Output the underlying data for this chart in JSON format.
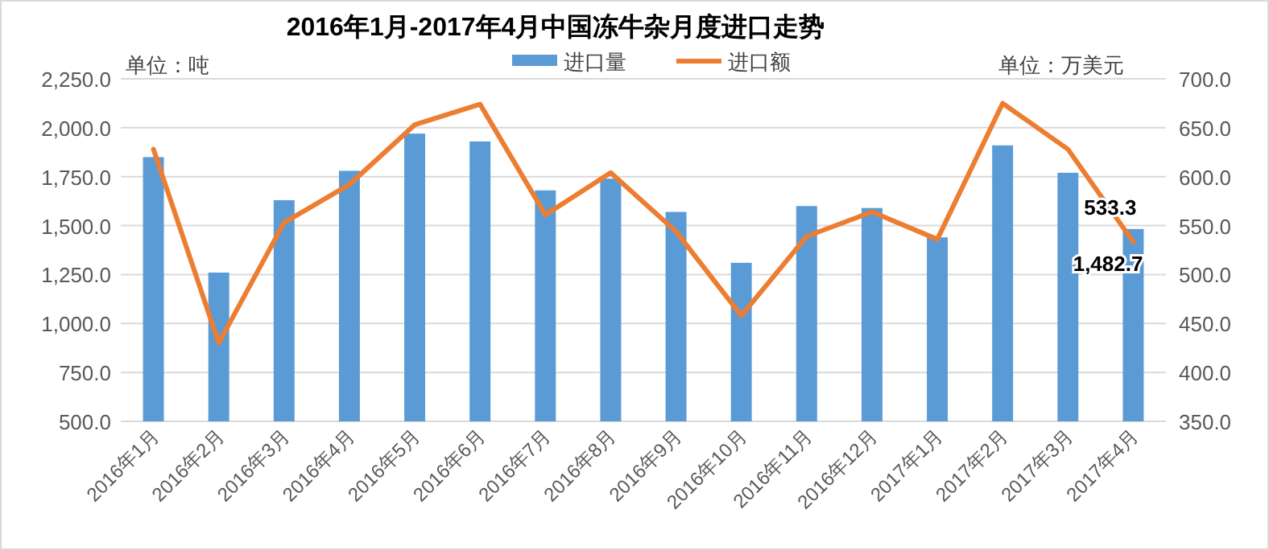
{
  "chart_data": {
    "type": "bar",
    "title": "2016年1月-2017年4月中国冻牛杂月度进口走势",
    "ylabel": "单位：吨",
    "y2label": "单位：万美元",
    "categories": [
      "2016年1月",
      "2016年2月",
      "2016年3月",
      "2016年4月",
      "2016年5月",
      "2016年6月",
      "2016年7月",
      "2016年8月",
      "2016年9月",
      "2016年10月",
      "2016年11月",
      "2016年12月",
      "2017年1月",
      "2017年2月",
      "2017年3月",
      "2017年4月"
    ],
    "series": [
      {
        "name": "进口量",
        "type": "bar",
        "color": "#5b9bd5",
        "values": [
          1850,
          1260,
          1630,
          1780,
          1970,
          1930,
          1680,
          1740,
          1570,
          1310,
          1600,
          1590,
          1440,
          1910,
          1770,
          1482.7
        ],
        "value_labels": [
          null,
          null,
          null,
          null,
          null,
          null,
          null,
          null,
          null,
          null,
          null,
          null,
          null,
          null,
          null,
          "1,482.7"
        ]
      },
      {
        "name": "进口额",
        "type": "line",
        "axis": "y2",
        "color": "#ed7d31",
        "values": [
          628,
          430,
          553,
          592,
          653,
          674,
          561,
          604,
          544,
          458,
          539,
          564,
          536,
          675,
          628,
          533.3
        ],
        "value_labels": [
          null,
          null,
          null,
          null,
          null,
          null,
          null,
          null,
          null,
          null,
          null,
          null,
          null,
          null,
          null,
          "533.3"
        ]
      }
    ],
    "ylim": [
      500,
      2250
    ],
    "yticks": [
      {
        "value": 500,
        "label": "500.0"
      },
      {
        "value": 750,
        "label": "750.0"
      },
      {
        "value": 1000,
        "label": "1,000.0"
      },
      {
        "value": 1250,
        "label": "1,250.0"
      },
      {
        "value": 1500,
        "label": "1,500.0"
      },
      {
        "value": 1750,
        "label": "1,750.0"
      },
      {
        "value": 2000,
        "label": "2,000.0"
      },
      {
        "value": 2250,
        "label": "2,250.0"
      }
    ],
    "y2lim": [
      350,
      700
    ],
    "y2ticks": [
      {
        "value": 350,
        "label": "350.0"
      },
      {
        "value": 400,
        "label": "400.0"
      },
      {
        "value": 450,
        "label": "450.0"
      },
      {
        "value": 500,
        "label": "500.0"
      },
      {
        "value": 550,
        "label": "550.0"
      },
      {
        "value": 600,
        "label": "600.0"
      },
      {
        "value": 650,
        "label": "650.0"
      },
      {
        "value": 700,
        "label": "700.0"
      }
    ],
    "grid": "y",
    "legend": "top"
  }
}
